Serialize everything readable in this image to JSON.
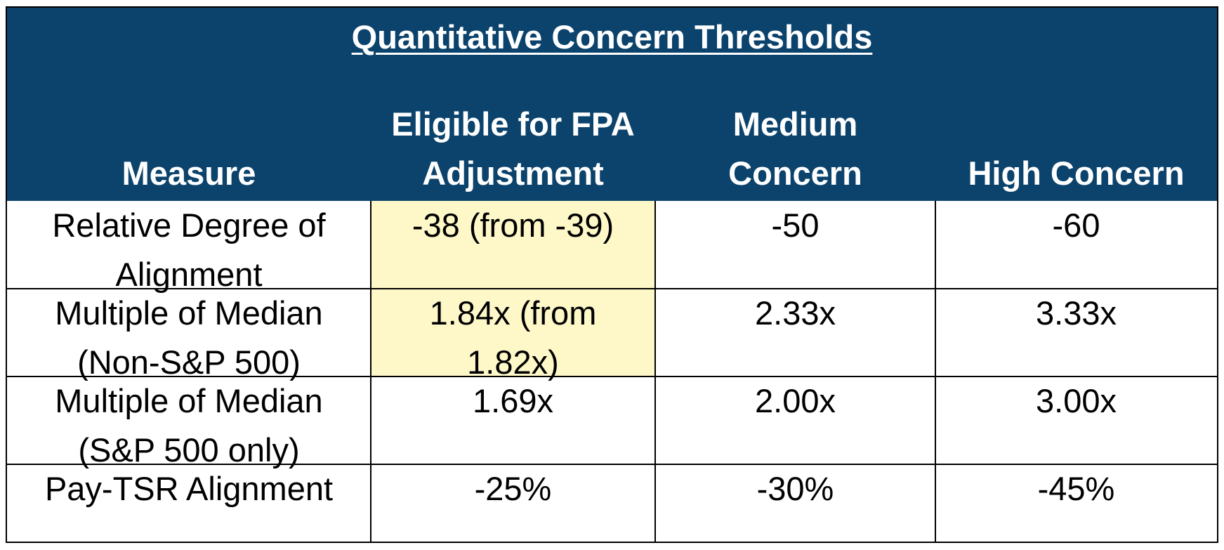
{
  "table": {
    "title": "Quantitative Concern Thresholds",
    "header_color": "#0c436c",
    "highlight_color": "#fef8c8",
    "columns": [
      "Measure",
      "Eligible for FPA\nAdjustment",
      "Medium\nConcern",
      "High Concern"
    ],
    "rows": [
      {
        "measure": "Relative Degree of\nAlignment",
        "fpa": "-38 (from -39)",
        "medium": "-50",
        "high": "-60",
        "fpa_highlighted": true
      },
      {
        "measure": "Multiple of Median\n(Non-S&P 500)",
        "fpa": "1.84x (from\n1.82x)",
        "medium": "2.33x",
        "high": "3.33x",
        "fpa_highlighted": true
      },
      {
        "measure": "Multiple of Median\n(S&P 500 only)",
        "fpa": "1.69x",
        "medium": "2.00x",
        "high": "3.00x",
        "fpa_highlighted": false
      },
      {
        "measure": "Pay-TSR Alignment",
        "fpa": "-25%",
        "medium": "-30%",
        "high": "-45%",
        "fpa_highlighted": false
      }
    ]
  }
}
